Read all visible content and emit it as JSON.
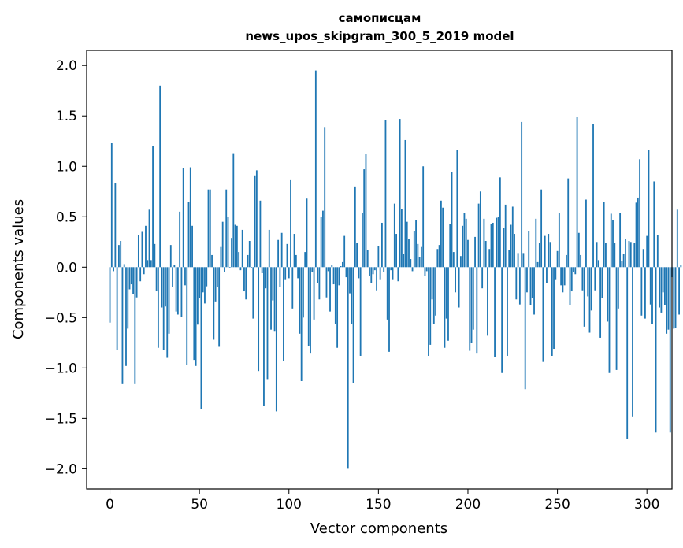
{
  "chart_data": {
    "type": "bar",
    "title_line1": "самописцам",
    "title_line2": "news_upos_skipgram_300_5_2019 model",
    "xlabel": "Vector components",
    "ylabel": "Components values",
    "xlim": [
      -13,
      314
    ],
    "ylim": [
      -2.2,
      2.15
    ],
    "xticks": [
      0,
      50,
      100,
      150,
      200,
      250,
      300
    ],
    "xtick_labels": [
      "0",
      "50",
      "100",
      "150",
      "200",
      "250",
      "300"
    ],
    "yticks": [
      -2.0,
      -1.5,
      -1.0,
      -0.5,
      0.0,
      0.5,
      1.0,
      1.5,
      2.0
    ],
    "ytick_labels": [
      "−2.0",
      "−1.5",
      "−1.0",
      "−0.5",
      "0.0",
      "0.5",
      "1.0",
      "1.5",
      "2.0"
    ],
    "bar_color": "#1f77b4",
    "grid": false,
    "values": [
      -0.55,
      1.23,
      -0.04,
      0.83,
      -0.82,
      0.22,
      0.26,
      -1.16,
      0.03,
      -0.98,
      -0.61,
      -0.22,
      -0.17,
      -0.27,
      -1.16,
      -0.3,
      0.32,
      -0.14,
      0.35,
      -0.07,
      0.41,
      0.07,
      0.57,
      0.07,
      1.2,
      0.23,
      -0.24,
      -0.8,
      1.8,
      -0.4,
      -0.82,
      -0.39,
      -0.9,
      -0.66,
      0.22,
      -0.2,
      0.02,
      -0.44,
      -0.47,
      0.55,
      -0.49,
      0.98,
      -0.18,
      -0.97,
      0.65,
      0.99,
      0.41,
      -0.92,
      -0.98,
      -0.57,
      -0.31,
      -1.41,
      -0.25,
      -0.36,
      -0.19,
      0.77,
      0.77,
      0.12,
      -0.72,
      -0.34,
      -0.2,
      -0.79,
      0.2,
      0.45,
      -0.05,
      0.77,
      0.5,
      -0.01,
      0.29,
      1.13,
      0.42,
      0.41,
      0.15,
      -0.03,
      0.37,
      -0.24,
      -0.32,
      0.12,
      0.26,
      -0.01,
      -0.51,
      0.91,
      0.96,
      -1.03,
      0.66,
      -0.06,
      -1.38,
      -0.21,
      -1.11,
      0.37,
      -0.62,
      -0.33,
      -0.64,
      -1.43,
      0.27,
      -0.2,
      0.34,
      -0.93,
      -0.12,
      0.23,
      -0.11,
      0.87,
      -0.41,
      0.33,
      0.12,
      -0.11,
      -0.66,
      -1.13,
      -0.5,
      0.15,
      0.68,
      -0.78,
      -0.85,
      -0.05,
      -0.52,
      1.95,
      -0.16,
      -0.32,
      0.5,
      0.56,
      1.39,
      -0.3,
      -0.04,
      -0.44,
      0.02,
      -0.17,
      -0.56,
      -0.8,
      -0.18,
      0.01,
      0.05,
      0.31,
      -0.1,
      -2.0,
      -0.26,
      -0.56,
      -1.15,
      0.8,
      0.24,
      -0.11,
      -0.88,
      0.54,
      0.97,
      1.12,
      0.17,
      -0.09,
      -0.16,
      -0.07,
      -0.03,
      -0.23,
      0.21,
      -0.12,
      0.44,
      -0.05,
      1.46,
      -0.52,
      -0.84,
      -0.03,
      -0.12,
      0.63,
      0.33,
      -0.14,
      1.47,
      0.58,
      0.13,
      1.26,
      0.45,
      0.28,
      0.08,
      -0.04,
      0.36,
      0.47,
      0.23,
      0.1,
      0.2,
      1.0,
      -0.09,
      -0.04,
      -0.88,
      -0.77,
      -0.32,
      -0.56,
      -0.48,
      0.18,
      0.22,
      0.66,
      0.59,
      -0.8,
      -0.51,
      -0.73,
      0.43,
      0.94,
      0.15,
      -0.25,
      1.16,
      -0.4,
      0.11,
      0.41,
      0.54,
      0.48,
      0.27,
      -0.83,
      -0.75,
      -0.62,
      0.3,
      -0.85,
      0.63,
      0.75,
      -0.21,
      0.48,
      0.26,
      -0.68,
      0.18,
      0.43,
      0.44,
      -0.89,
      0.49,
      0.5,
      0.89,
      -1.05,
      0.39,
      0.62,
      -0.88,
      0.17,
      0.42,
      0.6,
      0.33,
      -0.32,
      0.14,
      -0.37,
      1.44,
      0.14,
      -1.21,
      -0.25,
      0.36,
      -0.38,
      -0.31,
      -0.47,
      0.48,
      0.05,
      0.24,
      0.77,
      -0.94,
      0.31,
      -0.16,
      0.33,
      0.25,
      -0.88,
      -0.81,
      -0.12,
      0.16,
      0.54,
      -0.18,
      -0.25,
      -0.18,
      0.12,
      0.88,
      -0.38,
      -0.24,
      -0.05,
      -0.07,
      1.49,
      0.34,
      0.12,
      -0.23,
      -0.59,
      0.67,
      -0.29,
      -0.65,
      -0.43,
      1.42,
      -0.23,
      0.25,
      0.07,
      -0.7,
      -0.31,
      0.65,
      0.24,
      -0.54,
      -1.05,
      0.53,
      0.47,
      0.24,
      -1.02,
      -0.41,
      0.54,
      0.06,
      0.13,
      0.28,
      -1.7,
      0.26,
      0.25,
      -1.48,
      0.24,
      0.64,
      0.69,
      1.07,
      -0.48,
      0.18,
      -0.51,
      0.31,
      1.16,
      -0.37,
      -0.56,
      0.85,
      -1.64,
      0.32,
      -0.4,
      -0.45,
      -0.25,
      -0.38,
      -0.66,
      -0.62,
      -1.64,
      -0.1,
      -0.61,
      -0.6,
      0.57,
      -0.47,
      0.02
    ]
  }
}
